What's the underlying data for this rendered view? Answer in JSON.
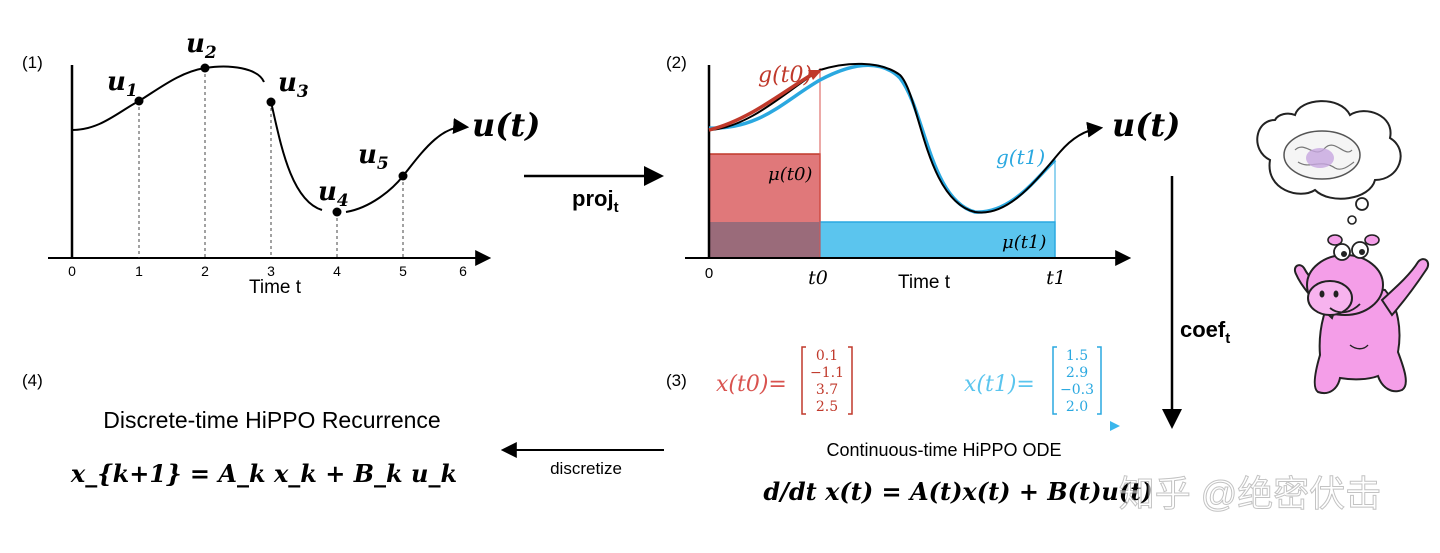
{
  "panel1": {
    "label": "(1)",
    "points": [
      {
        "name": "u",
        "sub": "1",
        "t": 1
      },
      {
        "name": "u",
        "sub": "2",
        "t": 2
      },
      {
        "name": "u",
        "sub": "3",
        "t": 3
      },
      {
        "name": "u",
        "sub": "4",
        "t": 4
      },
      {
        "name": "u",
        "sub": "5",
        "t": 5
      }
    ],
    "ticks": [
      "0",
      "1",
      "2",
      "3",
      "4",
      "5",
      "6"
    ],
    "xlabel": "Time t",
    "curve_label": "u(t)"
  },
  "panel2": {
    "label": "(2)",
    "g0_label": "g(t0)",
    "g1_label": "g(t1)",
    "mu0_label": "μ(t0)",
    "mu1_label": "μ(t1)",
    "curve_label": "u(t)",
    "ticks": [
      "0",
      "t0",
      "t1"
    ],
    "xlabel": "Time t",
    "colors": {
      "red": "#d9534f",
      "red_fill": "#e0787a",
      "blue": "#2aa8e0",
      "blue_fill": "#5bc5ee",
      "overlap": "#9a6b7a"
    }
  },
  "arrows": {
    "proj_label": "proj",
    "proj_sub": "t",
    "coef_label": "coef",
    "coef_sub": "t",
    "discretize_label": "discretize"
  },
  "panel3": {
    "label": "(3)",
    "x0_label": "x(t0)=",
    "x0_values": [
      "0.1",
      "−1.1",
      "3.7",
      "2.5"
    ],
    "x1_label": "x(t1)=",
    "x1_values": [
      "1.5",
      "2.9",
      "−0.3",
      "2.0"
    ],
    "title": "Continuous-time HiPPO ODE",
    "equation": "d/dt x(t) = A(t)x(t) + B(t)u(t)"
  },
  "panel4": {
    "label": "(4)",
    "title": "Discrete-time HiPPO Recurrence",
    "equation": "x_{k+1} = A_k x_k + B_k u_k"
  },
  "watermark": "知乎 @绝密伏击"
}
